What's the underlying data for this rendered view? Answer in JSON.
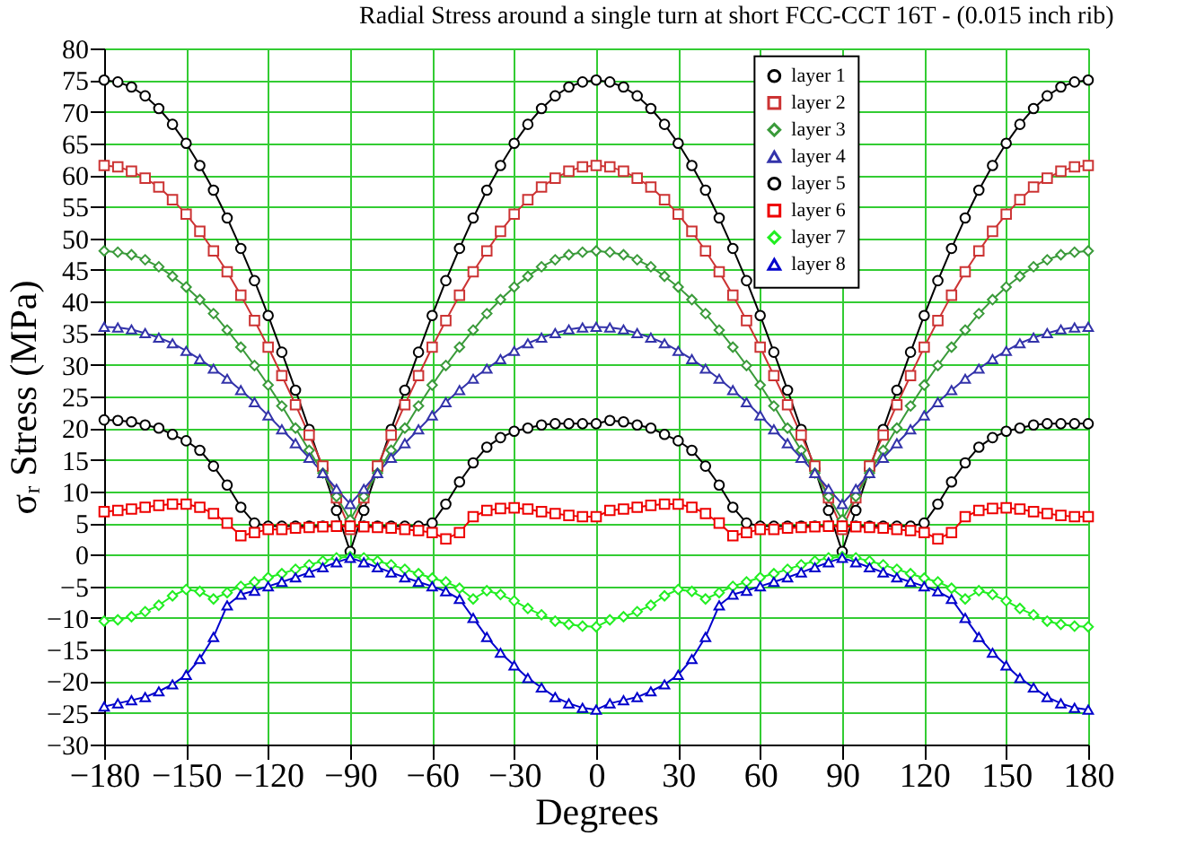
{
  "chart_data": {
    "type": "line",
    "title": "Radial Stress around a single turn at short FCC-CCT 16T -  (0.015 inch  rib)",
    "xlabel": "Degrees",
    "ylabel": "σᵣ Stress (MPa)",
    "xlim": [
      -180,
      180
    ],
    "xticks": [
      -180,
      -150,
      -120,
      -90,
      -60,
      -30,
      0,
      30,
      60,
      90,
      120,
      150,
      180
    ],
    "ylim": [
      -30,
      80
    ],
    "yticks": [
      -30,
      -25,
      -20,
      -15,
      -10,
      -5,
      0,
      5,
      10,
      15,
      20,
      25,
      30,
      35,
      40,
      45,
      50,
      55,
      60,
      65,
      70,
      75,
      80
    ],
    "grid": true,
    "legend": "top right",
    "x": [
      -180,
      -175,
      -170,
      -165,
      -160,
      -155,
      -150,
      -145,
      -140,
      -135,
      -130,
      -125,
      -120,
      -115,
      -110,
      -105,
      -100,
      -95,
      -90,
      -85,
      -80,
      -75,
      -70,
      -65,
      -60,
      -55,
      -50,
      -45,
      -40,
      -35,
      -30,
      -25,
      -20,
      -15,
      -10,
      -5,
      0,
      5,
      10,
      15,
      20,
      25,
      30,
      35,
      40,
      45,
      50,
      55,
      60,
      65,
      70,
      75,
      80,
      85,
      90,
      95,
      100,
      105,
      110,
      115,
      120,
      125,
      130,
      135,
      140,
      145,
      150,
      155,
      160,
      165,
      170,
      175,
      180
    ],
    "series": [
      {
        "name": "layer 1",
        "color": "#000000",
        "marker": "circle",
        "values": [
          75,
          74.7,
          73.9,
          72.5,
          70.5,
          68,
          65,
          61.5,
          57.6,
          53.2,
          48.4,
          43.3,
          37.8,
          32,
          26,
          19.8,
          13.5,
          7,
          0.5,
          7,
          13.5,
          19.8,
          26,
          32,
          37.8,
          43.3,
          48.4,
          53.2,
          57.6,
          61.5,
          65,
          68,
          70.5,
          72.5,
          73.9,
          74.7,
          75,
          74.7,
          73.9,
          72.5,
          70.5,
          68,
          65,
          61.5,
          57.6,
          53.2,
          48.4,
          43.3,
          37.8,
          32,
          26,
          19.8,
          13.5,
          7,
          0.5,
          7,
          13.5,
          19.8,
          26,
          32,
          37.8,
          43.3,
          48.4,
          53.2,
          57.6,
          61.5,
          65,
          68,
          70.5,
          72.5,
          73.9,
          74.7,
          75
        ]
      },
      {
        "name": "layer 2",
        "color": "#cc3333",
        "marker": "square",
        "values": [
          61.5,
          61.3,
          60.6,
          59.5,
          58.1,
          56.1,
          53.8,
          51.1,
          48,
          44.7,
          41,
          37,
          32.8,
          28.3,
          23.7,
          18.9,
          14,
          9,
          4,
          9,
          14,
          18.9,
          23.7,
          28.3,
          32.8,
          37,
          41,
          44.7,
          48,
          51.1,
          53.8,
          56.1,
          58.1,
          59.5,
          60.6,
          61.3,
          61.5,
          61.3,
          60.6,
          59.5,
          58.1,
          56.1,
          53.8,
          51.1,
          48,
          44.7,
          41,
          37,
          32.8,
          28.3,
          23.7,
          18.9,
          14,
          9,
          4,
          9,
          14,
          18.9,
          23.7,
          28.3,
          32.8,
          37,
          41,
          44.7,
          48,
          51.1,
          53.8,
          56.1,
          58.1,
          59.5,
          60.6,
          61.3,
          61.5
        ]
      },
      {
        "name": "layer 3",
        "color": "#3a9a3a",
        "marker": "diamond",
        "values": [
          48,
          47.8,
          47.4,
          46.6,
          45.5,
          44,
          42.3,
          40.3,
          38.1,
          35.5,
          32.8,
          29.9,
          26.8,
          23.5,
          20,
          16.5,
          12.9,
          9.2,
          5.5,
          9.2,
          12.9,
          16.5,
          20,
          23.5,
          26.8,
          29.9,
          32.8,
          35.5,
          38.1,
          40.3,
          42.3,
          44,
          45.5,
          46.6,
          47.4,
          47.8,
          48,
          47.8,
          47.4,
          46.6,
          45.5,
          44,
          42.3,
          40.3,
          38.1,
          35.5,
          32.8,
          29.9,
          26.8,
          23.5,
          20,
          16.5,
          12.9,
          9.2,
          5.5,
          9.2,
          12.9,
          16.5,
          20,
          23.5,
          26.8,
          29.9,
          32.8,
          35.5,
          38.1,
          40.3,
          42.3,
          44,
          45.5,
          46.6,
          47.4,
          47.8,
          48
        ]
      },
      {
        "name": "layer 4",
        "color": "#3333aa",
        "marker": "triangle",
        "values": [
          36,
          35.9,
          35.6,
          35,
          34.3,
          33.4,
          32.2,
          30.9,
          29.4,
          27.8,
          26,
          24.1,
          22,
          19.8,
          17.6,
          15.3,
          12.9,
          10.4,
          8,
          10.4,
          12.9,
          15.3,
          17.6,
          19.8,
          22,
          24.1,
          26,
          27.8,
          29.4,
          30.9,
          32.2,
          33.4,
          34.3,
          35,
          35.6,
          35.9,
          36,
          35.9,
          35.6,
          35,
          34.3,
          33.4,
          32.2,
          30.9,
          29.4,
          27.8,
          26,
          24.1,
          22,
          19.8,
          17.6,
          15.3,
          12.9,
          10.4,
          8,
          10.4,
          12.9,
          15.3,
          17.6,
          19.8,
          22,
          24.1,
          26,
          27.8,
          29.4,
          30.9,
          32.2,
          33.4,
          34.3,
          35,
          35.6,
          35.9,
          36
        ]
      },
      {
        "name": "layer 5",
        "color": "#000000",
        "marker": "circle",
        "values": [
          21.3,
          21.2,
          21,
          20.5,
          20,
          19,
          18,
          16.5,
          14,
          11,
          7.5,
          5,
          4.5,
          4.5,
          4.5,
          4.5,
          4.5,
          4.5,
          4.5,
          4.5,
          4.5,
          4.5,
          4.5,
          4.5,
          5,
          8,
          11.5,
          14.5,
          17,
          18.5,
          19.5,
          20,
          20.5,
          20.7,
          20.7,
          20.7,
          20.7,
          21.2,
          21,
          20.5,
          20,
          19,
          18,
          16.5,
          14,
          11,
          7.5,
          5,
          4.5,
          4.5,
          4.5,
          4.5,
          4.5,
          4.5,
          4.5,
          4.5,
          4.5,
          4.5,
          4.5,
          4.5,
          5,
          8,
          11.5,
          14.5,
          17,
          18.5,
          19.5,
          20,
          20.5,
          20.7,
          20.7,
          20.7,
          20.7
        ]
      },
      {
        "name": "layer 6",
        "color": "#ee0000",
        "marker": "square",
        "values": [
          6.8,
          7,
          7.2,
          7.5,
          7.8,
          8,
          8,
          7.5,
          6.5,
          5,
          3,
          3.5,
          4,
          4,
          4.2,
          4.3,
          4.4,
          4.5,
          4.5,
          4.4,
          4.3,
          4.2,
          4,
          3.8,
          3.5,
          2.5,
          3.5,
          6,
          7,
          7.3,
          7.4,
          7.2,
          6.8,
          6.5,
          6.2,
          6,
          6,
          7,
          7.2,
          7.5,
          7.8,
          8,
          8,
          7.5,
          6.5,
          5,
          3,
          3.5,
          4,
          4,
          4.2,
          4.3,
          4.4,
          4.5,
          4.5,
          4.4,
          4.3,
          4.2,
          4,
          3.8,
          3.5,
          2.5,
          3.5,
          6,
          7,
          7.3,
          7.4,
          7.2,
          6.8,
          6.5,
          6.2,
          6,
          6
        ]
      },
      {
        "name": "layer 7",
        "color": "#22ee22",
        "marker": "diamond",
        "values": [
          -10.5,
          -10.3,
          -9.8,
          -9,
          -8,
          -6.5,
          -5.5,
          -5.8,
          -7,
          -6,
          -5,
          -4.3,
          -3.6,
          -3,
          -2.3,
          -1.6,
          -1,
          -0.5,
          -0.3,
          -0.5,
          -1,
          -1.6,
          -2.3,
          -3,
          -3.7,
          -4.3,
          -5.3,
          -7,
          -5.7,
          -6.3,
          -7.3,
          -8.5,
          -9.5,
          -10.5,
          -11,
          -11.3,
          -11.4,
          -10.3,
          -9.8,
          -9,
          -8,
          -6.5,
          -5.5,
          -5.8,
          -7,
          -6,
          -5,
          -4.3,
          -3.6,
          -3,
          -2.3,
          -1.6,
          -1,
          -0.5,
          -0.3,
          -0.5,
          -1,
          -1.6,
          -2.3,
          -3,
          -3.7,
          -4.3,
          -5.3,
          -7,
          -5.7,
          -6.3,
          -7.3,
          -8.5,
          -9.5,
          -10.5,
          -11,
          -11.3,
          -11.4
        ]
      },
      {
        "name": "layer 8",
        "color": "#0000cc",
        "marker": "triangle",
        "values": [
          -24,
          -23.5,
          -23,
          -22.5,
          -21.6,
          -20.5,
          -19,
          -16.5,
          -13,
          -8,
          -6.3,
          -5.7,
          -5,
          -4.3,
          -3.6,
          -2.8,
          -2,
          -1.2,
          -0.5,
          -1.2,
          -2,
          -2.8,
          -3.6,
          -4.3,
          -5,
          -5.8,
          -7,
          -10,
          -13,
          -15.5,
          -17.5,
          -19.5,
          -21,
          -22.5,
          -23.5,
          -24.2,
          -24.5,
          -23.5,
          -23,
          -22.5,
          -21.6,
          -20.5,
          -19,
          -16.5,
          -13,
          -8,
          -6.3,
          -5.7,
          -5,
          -4.3,
          -3.6,
          -2.8,
          -2,
          -1.2,
          -0.5,
          -1.2,
          -2,
          -2.8,
          -3.6,
          -4.3,
          -5,
          -5.8,
          -7,
          -10,
          -13,
          -15.5,
          -17.5,
          -19.5,
          -21,
          -22.5,
          -23.5,
          -24.2,
          -24.5
        ]
      }
    ]
  }
}
